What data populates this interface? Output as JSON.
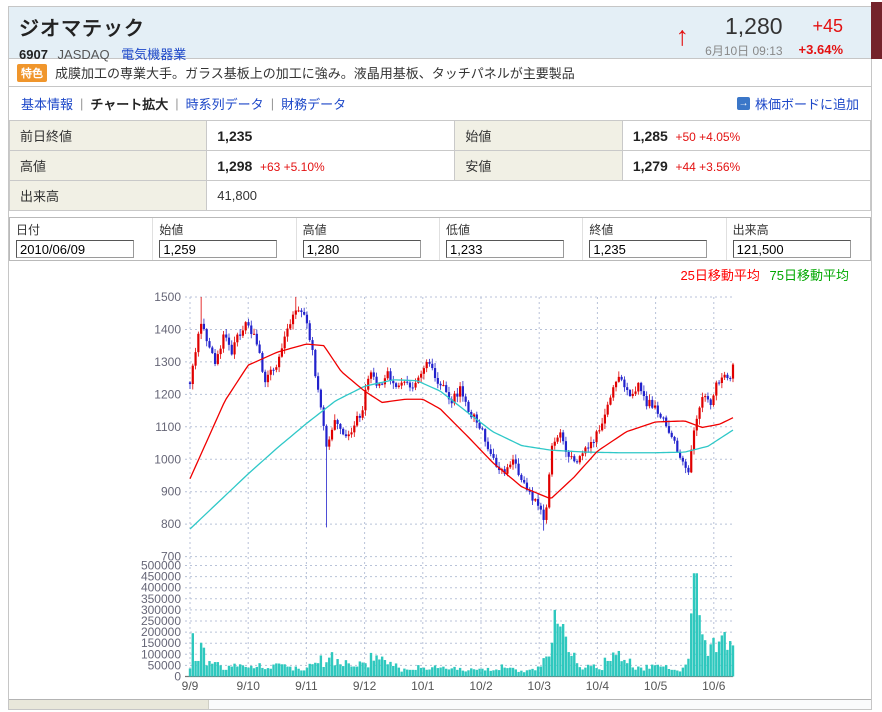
{
  "header": {
    "title": "ジオマテック",
    "code": "6907",
    "market": "JASDAQ",
    "industry": "電気機器業",
    "price": "1,280",
    "datetime": "6月10日 09:13",
    "change": "+45",
    "change_pct": "+3.64%",
    "arrow": "↑"
  },
  "feature": {
    "badge": "特色",
    "text": "成膜加工の専業大手。ガラス基板上の加工に強み。液晶用基板、タッチパネルが主要製品"
  },
  "nav": {
    "sep": "|",
    "items": [
      {
        "label": "基本情報"
      },
      {
        "label": "チャート拡大"
      },
      {
        "label": "時系列データ"
      },
      {
        "label": "財務データ"
      }
    ],
    "board_link": "株価ボードに追加",
    "board_icon": "→"
  },
  "summary_table": {
    "rows": [
      [
        {
          "label": "前日終値",
          "value": "1,235",
          "change": ""
        },
        {
          "label": "始値",
          "value": "1,285",
          "change": "+50 +4.05%"
        }
      ],
      [
        {
          "label": "高値",
          "value": "1,298",
          "change": "+63 +5.10%"
        },
        {
          "label": "安値",
          "value": "1,279",
          "change": "+44 +3.56%"
        }
      ]
    ],
    "volume_row": {
      "label": "出来高",
      "value": "41,800"
    }
  },
  "quote_form": {
    "fields": [
      {
        "label": "日付",
        "value": "2010/06/09"
      },
      {
        "label": "始値",
        "value": "1,259"
      },
      {
        "label": "高値",
        "value": "1,280"
      },
      {
        "label": "低値",
        "value": "1,233"
      },
      {
        "label": "終値",
        "value": "1,235"
      },
      {
        "label": "出来高",
        "value": "121,500"
      }
    ]
  },
  "legend": {
    "ma25": "25日移動平均",
    "ma75": "75日移動平均",
    "ma25_color": "#ff0000",
    "ma75_color": "#00a800"
  },
  "chart_data": {
    "type": "candlestick+volume",
    "x_labels": [
      "9/9",
      "9/10",
      "9/11",
      "9/12",
      "10/1",
      "10/2",
      "10/3",
      "10/4",
      "10/5",
      "10/6"
    ],
    "months_span": 9.33,
    "price_axis": {
      "min": 700,
      "max": 1500,
      "step": 100
    },
    "volume_axis": {
      "min": 0,
      "max": 500000,
      "step": 50000
    },
    "colors": {
      "up": "#e00000",
      "down": "#2222cc",
      "ma25_line": "#f00000",
      "ma75_line": "#2fc8c8",
      "volume": "#2ec8be",
      "grid": "#b8c2d8",
      "axis_text": "#667",
      "baseline": "#777"
    },
    "close_anchors": [
      [
        0.0,
        1240
      ],
      [
        0.1,
        1330
      ],
      [
        0.2,
        1430
      ],
      [
        0.3,
        1360
      ],
      [
        0.45,
        1290
      ],
      [
        0.6,
        1400
      ],
      [
        0.7,
        1330
      ],
      [
        0.85,
        1390
      ],
      [
        1.0,
        1420
      ],
      [
        1.15,
        1350
      ],
      [
        1.3,
        1240
      ],
      [
        1.45,
        1280
      ],
      [
        1.6,
        1350
      ],
      [
        1.8,
        1460
      ],
      [
        2.0,
        1440
      ],
      [
        2.1,
        1330
      ],
      [
        2.25,
        1150
      ],
      [
        2.35,
        1030
      ],
      [
        2.5,
        1120
      ],
      [
        2.65,
        1060
      ],
      [
        2.8,
        1100
      ],
      [
        2.95,
        1150
      ],
      [
        3.1,
        1270
      ],
      [
        3.25,
        1220
      ],
      [
        3.4,
        1265
      ],
      [
        3.55,
        1210
      ],
      [
        3.7,
        1240
      ],
      [
        3.85,
        1225
      ],
      [
        4.0,
        1280
      ],
      [
        4.1,
        1300
      ],
      [
        4.3,
        1230
      ],
      [
        4.5,
        1180
      ],
      [
        4.65,
        1215
      ],
      [
        4.8,
        1140
      ],
      [
        4.95,
        1115
      ],
      [
        5.1,
        1050
      ],
      [
        5.25,
        990
      ],
      [
        5.4,
        950
      ],
      [
        5.55,
        1000
      ],
      [
        5.7,
        930
      ],
      [
        5.85,
        890
      ],
      [
        6.0,
        855
      ],
      [
        6.1,
        805
      ],
      [
        6.22,
        1050
      ],
      [
        6.35,
        1080
      ],
      [
        6.5,
        1015
      ],
      [
        6.65,
        985
      ],
      [
        6.8,
        1040
      ],
      [
        6.95,
        1060
      ],
      [
        7.1,
        1120
      ],
      [
        7.25,
        1220
      ],
      [
        7.4,
        1250
      ],
      [
        7.55,
        1195
      ],
      [
        7.7,
        1230
      ],
      [
        7.85,
        1175
      ],
      [
        8.0,
        1160
      ],
      [
        8.15,
        1115
      ],
      [
        8.3,
        1060
      ],
      [
        8.45,
        1000
      ],
      [
        8.55,
        950
      ],
      [
        8.65,
        1090
      ],
      [
        8.8,
        1200
      ],
      [
        8.95,
        1170
      ],
      [
        9.05,
        1235
      ],
      [
        9.15,
        1265
      ],
      [
        9.25,
        1240
      ],
      [
        9.33,
        1280
      ]
    ],
    "wick_events": [
      {
        "m": 0.2,
        "high": 1500
      },
      {
        "m": 1.82,
        "high": 1500
      },
      {
        "m": 2.35,
        "low": 790
      },
      {
        "m": 6.1,
        "low": 780
      }
    ],
    "ma25_anchors": [
      [
        0.0,
        940
      ],
      [
        0.3,
        1060
      ],
      [
        0.6,
        1180
      ],
      [
        1.0,
        1290
      ],
      [
        1.5,
        1330
      ],
      [
        2.0,
        1355
      ],
      [
        2.3,
        1350
      ],
      [
        2.6,
        1270
      ],
      [
        3.0,
        1210
      ],
      [
        3.3,
        1175
      ],
      [
        3.7,
        1185
      ],
      [
        4.0,
        1185
      ],
      [
        4.3,
        1155
      ],
      [
        4.8,
        1065
      ],
      [
        5.2,
        990
      ],
      [
        5.7,
        915
      ],
      [
        6.2,
        878
      ],
      [
        6.6,
        945
      ],
      [
        7.0,
        1025
      ],
      [
        7.5,
        1085
      ],
      [
        8.0,
        1115
      ],
      [
        8.5,
        1118
      ],
      [
        8.8,
        1098
      ],
      [
        9.1,
        1108
      ],
      [
        9.33,
        1128
      ]
    ],
    "ma75_anchors": [
      [
        0.0,
        785
      ],
      [
        0.5,
        870
      ],
      [
        1.0,
        955
      ],
      [
        1.5,
        1035
      ],
      [
        2.0,
        1110
      ],
      [
        2.5,
        1180
      ],
      [
        3.0,
        1225
      ],
      [
        3.5,
        1245
      ],
      [
        3.9,
        1242
      ],
      [
        4.3,
        1210
      ],
      [
        4.8,
        1140
      ],
      [
        5.2,
        1085
      ],
      [
        5.7,
        1042
      ],
      [
        6.2,
        1028
      ],
      [
        6.8,
        1022
      ],
      [
        7.4,
        1020
      ],
      [
        8.0,
        1020
      ],
      [
        8.5,
        1022
      ],
      [
        8.9,
        1040
      ],
      [
        9.33,
        1090
      ]
    ],
    "volume_anchors": [
      [
        0.03,
        30000
      ],
      [
        0.07,
        195000
      ],
      [
        0.12,
        70000
      ],
      [
        0.2,
        152000
      ],
      [
        0.3,
        50000
      ],
      [
        0.45,
        65000
      ],
      [
        0.6,
        30000
      ],
      [
        0.8,
        45000
      ],
      [
        1.0,
        40000
      ],
      [
        1.2,
        60000
      ],
      [
        1.4,
        35000
      ],
      [
        1.6,
        55000
      ],
      [
        1.8,
        45000
      ],
      [
        2.0,
        40000
      ],
      [
        2.2,
        60000
      ],
      [
        2.4,
        85000
      ],
      [
        2.6,
        55000
      ],
      [
        2.8,
        45000
      ],
      [
        3.0,
        60000
      ],
      [
        3.2,
        95000
      ],
      [
        3.4,
        55000
      ],
      [
        3.6,
        40000
      ],
      [
        3.8,
        30000
      ],
      [
        4.0,
        40000
      ],
      [
        4.2,
        50000
      ],
      [
        4.4,
        35000
      ],
      [
        4.6,
        30000
      ],
      [
        4.8,
        28000
      ],
      [
        5.0,
        35000
      ],
      [
        5.2,
        28000
      ],
      [
        5.4,
        40000
      ],
      [
        5.6,
        32000
      ],
      [
        5.8,
        28000
      ],
      [
        6.0,
        45000
      ],
      [
        6.15,
        90000
      ],
      [
        6.25,
        300000
      ],
      [
        6.35,
        225000
      ],
      [
        6.5,
        110000
      ],
      [
        6.65,
        60000
      ],
      [
        6.8,
        40000
      ],
      [
        7.0,
        38000
      ],
      [
        7.2,
        70000
      ],
      [
        7.35,
        115000
      ],
      [
        7.5,
        60000
      ],
      [
        7.7,
        45000
      ],
      [
        7.9,
        35000
      ],
      [
        8.1,
        45000
      ],
      [
        8.3,
        30000
      ],
      [
        8.45,
        40000
      ],
      [
        8.58,
        80000
      ],
      [
        8.68,
        465000
      ],
      [
        8.8,
        190000
      ],
      [
        8.95,
        145000
      ],
      [
        9.05,
        110000
      ],
      [
        9.15,
        185000
      ],
      [
        9.25,
        120000
      ],
      [
        9.33,
        140000
      ]
    ]
  }
}
